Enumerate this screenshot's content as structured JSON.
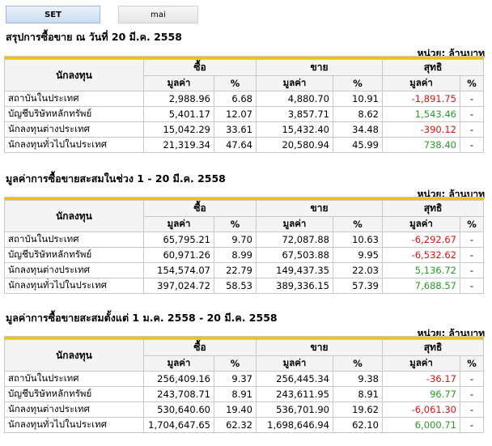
{
  "tabs": [
    {
      "label": "SET",
      "active": true
    },
    {
      "label": "mai",
      "active": false
    }
  ],
  "colors": {
    "negative": "#e01010",
    "positive": "#2a9a2a",
    "accent_bar": "#f3c200"
  },
  "sections": [
    {
      "title": "สรุปการซื้อขาย ณ วันที่ 20 มี.ค. 2558",
      "unit": "หน่วย: ล้านบาท",
      "headers": {
        "investor": "นักลงทุน",
        "buy": "ซื้อ",
        "sell": "ขาย",
        "net": "สุทธิ",
        "value": "มูลค่า",
        "pct": "%"
      },
      "rows": [
        {
          "investor": "สถาบันในประเทศ",
          "buy_value": "2,988.96",
          "buy_pct": "6.68",
          "sell_value": "4,880.70",
          "sell_pct": "10.91",
          "net_value": "-1,891.75",
          "net_pct": "-"
        },
        {
          "investor": "บัญชีบริษัทหลักทรัพย์",
          "buy_value": "5,401.17",
          "buy_pct": "12.07",
          "sell_value": "3,857.71",
          "sell_pct": "8.62",
          "net_value": "1,543.46",
          "net_pct": "-"
        },
        {
          "investor": "นักลงทุนต่างประเทศ",
          "buy_value": "15,042.29",
          "buy_pct": "33.61",
          "sell_value": "15,432.40",
          "sell_pct": "34.48",
          "net_value": "-390.12",
          "net_pct": "-"
        },
        {
          "investor": "นักลงทุนทั่วไปในประเทศ",
          "buy_value": "21,319.34",
          "buy_pct": "47.64",
          "sell_value": "20,580.94",
          "sell_pct": "45.99",
          "net_value": "738.40",
          "net_pct": "-"
        }
      ]
    },
    {
      "title": "มูลค่าการซื้อขายสะสมในช่วง 1 - 20 มี.ค. 2558",
      "unit": "หน่วย: ล้านบาท",
      "headers": {
        "investor": "นักลงทุน",
        "buy": "ซื้อ",
        "sell": "ขาย",
        "net": "สุทธิ",
        "value": "มูลค่า",
        "pct": "%"
      },
      "rows": [
        {
          "investor": "สถาบันในประเทศ",
          "buy_value": "65,795.21",
          "buy_pct": "9.70",
          "sell_value": "72,087.88",
          "sell_pct": "10.63",
          "net_value": "-6,292.67",
          "net_pct": "-"
        },
        {
          "investor": "บัญชีบริษัทหลักทรัพย์",
          "buy_value": "60,971.26",
          "buy_pct": "8.99",
          "sell_value": "67,503.88",
          "sell_pct": "9.95",
          "net_value": "-6,532.62",
          "net_pct": "-"
        },
        {
          "investor": "นักลงทุนต่างประเทศ",
          "buy_value": "154,574.07",
          "buy_pct": "22.79",
          "sell_value": "149,437.35",
          "sell_pct": "22.03",
          "net_value": "5,136.72",
          "net_pct": "-"
        },
        {
          "investor": "นักลงทุนทั่วไปในประเทศ",
          "buy_value": "397,024.72",
          "buy_pct": "58.53",
          "sell_value": "389,336.15",
          "sell_pct": "57.39",
          "net_value": "7,688.57",
          "net_pct": "-"
        }
      ]
    },
    {
      "title": "มูลค่าการซื้อขายสะสมตั้งแต่ 1 ม.ค. 2558 - 20 มี.ค. 2558",
      "unit": "หน่วย: ล้านบาท",
      "headers": {
        "investor": "นักลงทุน",
        "buy": "ซื้อ",
        "sell": "ขาย",
        "net": "สุทธิ",
        "value": "มูลค่า",
        "pct": "%"
      },
      "rows": [
        {
          "investor": "สถาบันในประเทศ",
          "buy_value": "256,409.16",
          "buy_pct": "9.37",
          "sell_value": "256,445.34",
          "sell_pct": "9.38",
          "net_value": "-36.17",
          "net_pct": "-"
        },
        {
          "investor": "บัญชีบริษัทหลักทรัพย์",
          "buy_value": "243,708.71",
          "buy_pct": "8.91",
          "sell_value": "243,611.95",
          "sell_pct": "8.91",
          "net_value": "96.77",
          "net_pct": "-"
        },
        {
          "investor": "นักลงทุนต่างประเทศ",
          "buy_value": "530,640.60",
          "buy_pct": "19.40",
          "sell_value": "536,701.90",
          "sell_pct": "19.62",
          "net_value": "-6,061.30",
          "net_pct": "-"
        },
        {
          "investor": "นักลงทุนทั่วไปในประเทศ",
          "buy_value": "1,704,647.65",
          "buy_pct": "62.32",
          "sell_value": "1,698,646.94",
          "sell_pct": "62.10",
          "net_value": "6,000.71",
          "net_pct": "-"
        }
      ]
    }
  ]
}
